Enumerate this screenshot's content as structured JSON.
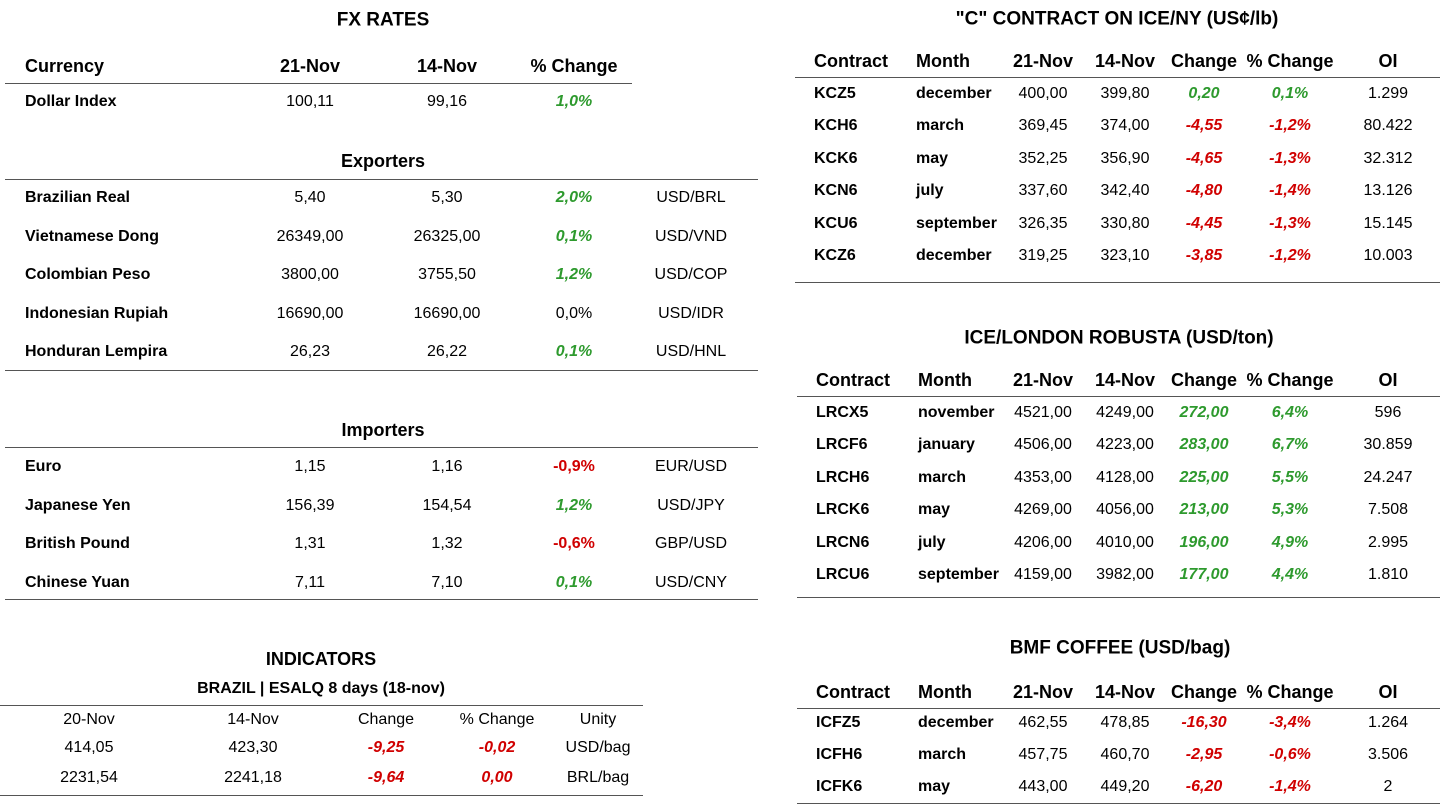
{
  "fx": {
    "title": "FX RATES",
    "header": [
      "Currency",
      "21-Nov",
      "14-Nov",
      "% Change"
    ],
    "rows": [
      [
        "Dollar Index",
        "100,11",
        "99,16",
        "1,0%"
      ]
    ]
  },
  "exporters": {
    "title": "Exporters",
    "rows": [
      [
        "Brazilian Real",
        "5,40",
        "5,30",
        "2,0%",
        "USD/BRL"
      ],
      [
        "Vietnamese Dong",
        "26349,00",
        "26325,00",
        "0,1%",
        "USD/VND"
      ],
      [
        "Colombian Peso",
        "3800,00",
        "3755,50",
        "1,2%",
        "USD/COP"
      ],
      [
        "Indonesian Rupiah",
        "16690,00",
        "16690,00",
        "0,0%",
        "USD/IDR"
      ],
      [
        "Honduran Lempira",
        "26,23",
        "26,22",
        "0,1%",
        "USD/HNL"
      ]
    ]
  },
  "importers": {
    "title": "Importers",
    "rows": [
      [
        "Euro",
        "1,15",
        "1,16",
        "-0,9%",
        "EUR/USD"
      ],
      [
        "Japanese Yen",
        "156,39",
        "154,54",
        "1,2%",
        "USD/JPY"
      ],
      [
        "British Pound",
        "1,31",
        "1,32",
        "-0,6%",
        "GBP/USD"
      ],
      [
        "Chinese Yuan",
        "7,11",
        "7,10",
        "0,1%",
        "USD/CNY"
      ]
    ]
  },
  "indicators": {
    "title": "INDICATORS",
    "subtitle": "BRAZIL | ESALQ 8 days (18-nov)",
    "header": [
      "20-Nov",
      "14-Nov",
      "Change",
      "% Change",
      "Unity"
    ],
    "rows": [
      [
        "414,05",
        "423,30",
        "-9,25",
        "-0,02",
        "USD/bag"
      ],
      [
        "2231,54",
        "2241,18",
        "-9,64",
        "0,00",
        "BRL/bag"
      ]
    ]
  },
  "ice_ny": {
    "title": "\"C\" CONTRACT ON ICE/NY (US¢/lb)",
    "header": [
      "Contract",
      "Month",
      "21-Nov",
      "14-Nov",
      "Change",
      "% Change",
      "OI"
    ],
    "rows": [
      [
        "KCZ5",
        "december",
        "400,00",
        "399,80",
        "0,20",
        "0,1%",
        "1.299"
      ],
      [
        "KCH6",
        "march",
        "369,45",
        "374,00",
        "-4,55",
        "-1,2%",
        "80.422"
      ],
      [
        "KCK6",
        "may",
        "352,25",
        "356,90",
        "-4,65",
        "-1,3%",
        "32.312"
      ],
      [
        "KCN6",
        "july",
        "337,60",
        "342,40",
        "-4,80",
        "-1,4%",
        "13.126"
      ],
      [
        "KCU6",
        "september",
        "326,35",
        "330,80",
        "-4,45",
        "-1,3%",
        "15.145"
      ],
      [
        "KCZ6",
        "december",
        "319,25",
        "323,10",
        "-3,85",
        "-1,2%",
        "10.003"
      ]
    ]
  },
  "ice_london": {
    "title": "ICE/LONDON ROBUSTA (USD/ton)",
    "header": [
      "Contract",
      "Month",
      "21-Nov",
      "14-Nov",
      "Change",
      "% Change",
      "OI"
    ],
    "rows": [
      [
        "LRCX5",
        "november",
        "4521,00",
        "4249,00",
        "272,00",
        "6,4%",
        "596"
      ],
      [
        "LRCF6",
        "january",
        "4506,00",
        "4223,00",
        "283,00",
        "6,7%",
        "30.859"
      ],
      [
        "LRCH6",
        "march",
        "4353,00",
        "4128,00",
        "225,00",
        "5,5%",
        "24.247"
      ],
      [
        "LRCK6",
        "may",
        "4269,00",
        "4056,00",
        "213,00",
        "5,3%",
        "7.508"
      ],
      [
        "LRCN6",
        "july",
        "4206,00",
        "4010,00",
        "196,00",
        "4,9%",
        "2.995"
      ],
      [
        "LRCU6",
        "september",
        "4159,00",
        "3982,00",
        "177,00",
        "4,4%",
        "1.810"
      ]
    ]
  },
  "bmf": {
    "title": "BMF COFFEE (USD/bag)",
    "header": [
      "Contract",
      "Month",
      "21-Nov",
      "14-Nov",
      "Change",
      "% Change",
      "OI"
    ],
    "rows": [
      [
        "ICFZ5",
        "december",
        "462,55",
        "478,85",
        "-16,30",
        "-3,4%",
        "1.264"
      ],
      [
        "ICFH6",
        "march",
        "457,75",
        "460,70",
        "-2,95",
        "-0,6%",
        "3.506"
      ],
      [
        "ICFK6",
        "may",
        "443,00",
        "449,20",
        "-6,20",
        "-1,4%",
        "2"
      ]
    ]
  }
}
